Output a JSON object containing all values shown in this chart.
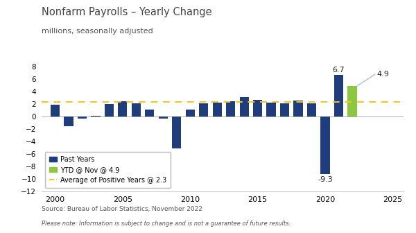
{
  "title": "Nonfarm Payrolls – Yearly Change",
  "subtitle": "millions, seasonally adjusted",
  "years": [
    2000,
    2001,
    2002,
    2003,
    2004,
    2005,
    2006,
    2007,
    2008,
    2009,
    2010,
    2011,
    2012,
    2013,
    2014,
    2015,
    2016,
    2017,
    2018,
    2019,
    2020,
    2021,
    2022
  ],
  "values": [
    1.9,
    -1.6,
    -0.3,
    0.1,
    2.0,
    2.5,
    2.1,
    1.1,
    -0.3,
    -5.1,
    1.1,
    2.1,
    2.2,
    2.4,
    3.1,
    2.7,
    2.2,
    2.1,
    2.6,
    2.1,
    -9.3,
    6.7,
    4.9
  ],
  "bar_colors": [
    "#1f3d7a",
    "#1f3d7a",
    "#1f3d7a",
    "#1f3d7a",
    "#1f3d7a",
    "#1f3d7a",
    "#1f3d7a",
    "#1f3d7a",
    "#1f3d7a",
    "#1f3d7a",
    "#1f3d7a",
    "#1f3d7a",
    "#1f3d7a",
    "#1f3d7a",
    "#1f3d7a",
    "#1f3d7a",
    "#1f3d7a",
    "#1f3d7a",
    "#1f3d7a",
    "#1f3d7a",
    "#1f3d7a",
    "#1f3d7a",
    "#8dc63f"
  ],
  "avg_line_value": 2.3,
  "avg_line_color": "#f5c518",
  "annotation_2021_val": 6.7,
  "annotation_2020_val": -9.3,
  "annotation_2022_val": 4.9,
  "annotation_2021_label": "6.7",
  "annotation_2020_label": "-9.3",
  "annotation_2022_label": "4.9",
  "ylim_min": -12,
  "ylim_max": 9,
  "yticks": [
    -12,
    -10,
    -8,
    -6,
    -4,
    -2,
    0,
    2,
    4,
    6,
    8
  ],
  "xticks": [
    2000,
    2005,
    2010,
    2015,
    2020,
    2025
  ],
  "xlim_min": 1999.0,
  "xlim_max": 2025.8,
  "source_text": "Source: Bureau of Labor Statistics, November 2022",
  "note_text": "Please note: Information is subject to change and is not a guarantee of future results.",
  "legend_past_color": "#1f3d7a",
  "legend_ytd_color": "#8dc63f",
  "legend_avg_color": "#f5c518",
  "title_color": "#444444",
  "subtitle_color": "#555555",
  "source_color": "#555555",
  "annotation_line_color": "#a8c8d8",
  "spine_color": "#cccccc",
  "zero_line_color": "#aaaaaa"
}
